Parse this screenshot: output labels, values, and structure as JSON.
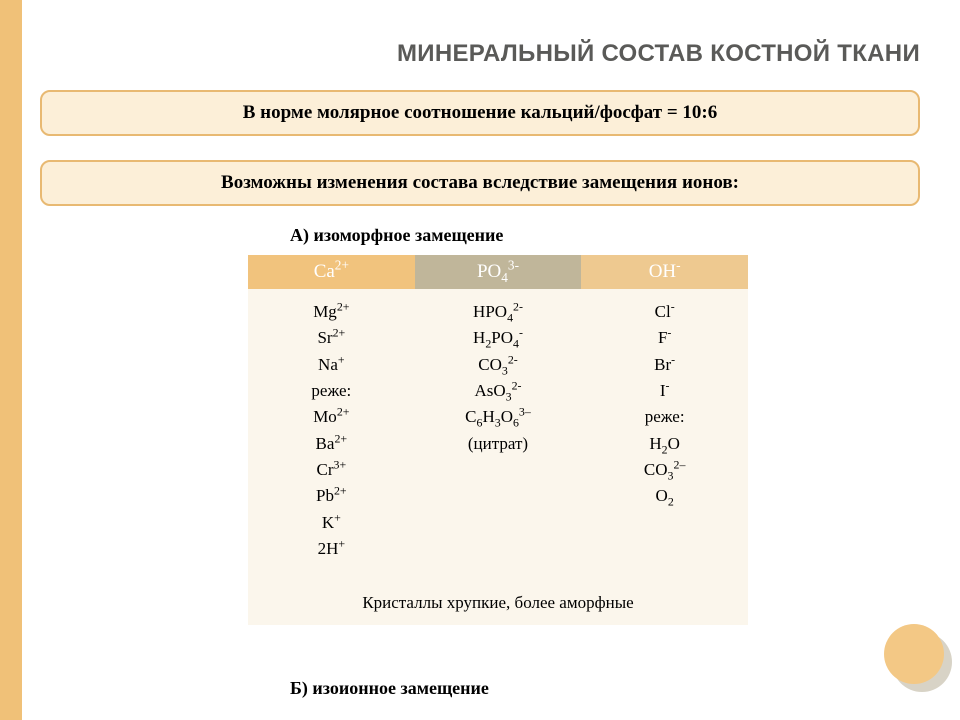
{
  "colors": {
    "accent": "#f0c178",
    "box_bg": "#fcefd8",
    "box_border": "#e8b972",
    "title_color": "#5a5a58",
    "th1": "#f1c37d",
    "th2": "#c0b69a",
    "th3": "#eec990",
    "cell_bg": "#fbf6ec",
    "circle": "#f3c885",
    "circle_shadow": "#d8d3c6"
  },
  "title": "МИНЕРАЛЬНЫЙ СОСТАВ КОСТНОЙ ТКАНИ",
  "box1": "В норме молярное соотношение кальций/фосфат = 10:6",
  "box2": "Возможны изменения состава вследствие замещения ионов:",
  "label_a": "А) изоморфное замещение",
  "label_b": "Б) изоионное замещение",
  "table": {
    "headers": {
      "h1_html": "Ca<sup>2+</sup>",
      "h2_html": "PO<sub>4</sub><sup>3-</sup>",
      "h3_html": "OH<sup>-</sup>"
    },
    "col1_html": "Mg<sup>2+</sup><br>Sr<sup>2+</sup><br>Na<sup>+</sup><br>реже:<br>Mo<sup>2+</sup><br>Ba<sup>2+</sup><br>Cr<sup>3+</sup><br>Pb<sup>2+</sup><br>K<sup>+</sup><br>2H<sup>+</sup>",
    "col2_html": "HPO<sub>4</sub><sup>2-</sup><br>H<sub>2</sub>PO<sub>4</sub><sup>-</sup><br>CO<sub>3</sub><sup>2-</sup><br>AsO<sub>3</sub><sup>2-</sup><br>C<sub>6</sub>H<sub>3</sub>O<sub>6</sub><sup>3–</sup><br>(цитрат)",
    "col3_html": "Cl<sup>-</sup><br>F<sup>-</sup><br>Br<sup>-</sup><br>I<sup>-</sup><br>реже:<br>H<sub>2</sub>O<br>CO<sub>3</sub><sup>2–</sup><br>O<sub>2</sub>",
    "footer": "Кристаллы хрупкие, более аморфные"
  }
}
